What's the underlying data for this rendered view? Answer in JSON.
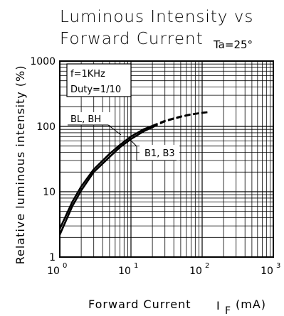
{
  "chart_data": {
    "type": "line",
    "title": [
      "Luminous Intensity vs",
      "Forward Current"
    ],
    "condition": "Ta=25°",
    "xlabel": "Forward Current",
    "xlabel_symbol": "I",
    "xlabel_subscript": "F",
    "xlabel_unit": "(mA)",
    "ylabel": "Relative luminous intensity (%)",
    "x_scale": "log",
    "y_scale": "log",
    "xlim": [
      1,
      1000
    ],
    "ylim": [
      1,
      1000
    ],
    "x_ticks": [
      {
        "base": "10",
        "exp": "0"
      },
      {
        "base": "10",
        "exp": "1"
      },
      {
        "base": "10",
        "exp": "2"
      },
      {
        "base": "10",
        "exp": "3"
      }
    ],
    "y_ticks": [
      "1",
      "10",
      "100",
      "1000"
    ],
    "grid": true,
    "test_conditions": [
      "f=1KHz",
      "Duty=1/10"
    ],
    "series": [
      {
        "name": "BL, BH",
        "solid": {
          "x": [
            1,
            1.5,
            2,
            3,
            5,
            7,
            10,
            15,
            20
          ],
          "y": [
            2.7,
            7,
            12,
            22,
            38,
            52,
            70,
            90,
            102
          ]
        },
        "dashed": {
          "x": [
            20,
            30,
            50,
            70,
            100,
            120
          ],
          "y": [
            102,
            122,
            142,
            153,
            162,
            165
          ]
        }
      },
      {
        "name": "B1, B3",
        "solid": {
          "x": [
            1,
            1.5,
            2,
            3,
            5,
            7,
            10,
            15,
            20
          ],
          "y": [
            2.2,
            6,
            10.5,
            20,
            34,
            48,
            64,
            84,
            97
          ]
        },
        "dashed": {
          "x": [
            20,
            30,
            50,
            70,
            100,
            120
          ],
          "y": [
            97,
            120,
            140,
            152,
            161,
            165
          ]
        }
      }
    ]
  }
}
